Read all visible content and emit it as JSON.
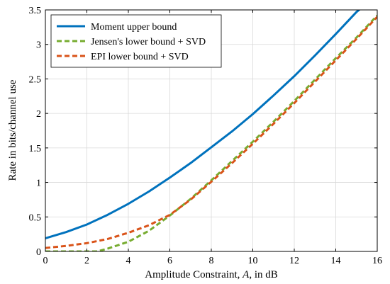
{
  "chart_data": {
    "type": "line",
    "xlabel": "Amplitude Constraint, A, in dB",
    "ylabel": "Rate in bits/channel use",
    "xlim": [
      0,
      16
    ],
    "ylim": [
      0,
      3.5
    ],
    "xticks": [
      "0",
      "2",
      "4",
      "6",
      "8",
      "10",
      "12",
      "14",
      "16"
    ],
    "yticks": [
      "0",
      "0.5",
      "1",
      "1.5",
      "2",
      "2.5",
      "3",
      "3.5"
    ],
    "grid": true,
    "legend_position": "top-left",
    "series": [
      {
        "name": "Moment upper bound",
        "color": "#0072bd",
        "dash": "solid",
        "x": [
          0,
          1,
          2,
          3,
          4,
          5,
          6,
          7,
          8,
          9,
          10,
          11,
          12,
          13,
          14,
          15,
          15.2
        ],
        "y": [
          0.19,
          0.28,
          0.39,
          0.53,
          0.69,
          0.87,
          1.07,
          1.28,
          1.51,
          1.74,
          1.99,
          2.26,
          2.54,
          2.84,
          3.15,
          3.47,
          3.52
        ]
      },
      {
        "name": "Jensen's lower bound + SVD",
        "color": "#77ac30",
        "dash": "dashed",
        "x": [
          0,
          1,
          2,
          2.5,
          3,
          4,
          5,
          6,
          7,
          8,
          9,
          10,
          11,
          12,
          13,
          14,
          15,
          16
        ],
        "y": [
          0,
          0,
          0,
          0,
          0.04,
          0.14,
          0.3,
          0.52,
          0.76,
          1.03,
          1.31,
          1.59,
          1.88,
          2.18,
          2.49,
          2.8,
          3.1,
          3.42
        ]
      },
      {
        "name": "EPI lower bound + SVD",
        "color": "#d95319",
        "dash": "dashed",
        "x": [
          0,
          1,
          2,
          3,
          4,
          5,
          6,
          7,
          8,
          9,
          10,
          11,
          12,
          13,
          14,
          15,
          16
        ],
        "y": [
          0.05,
          0.08,
          0.12,
          0.18,
          0.27,
          0.38,
          0.53,
          0.75,
          1.01,
          1.28,
          1.56,
          1.85,
          2.15,
          2.46,
          2.77,
          3.08,
          3.4
        ]
      }
    ]
  }
}
